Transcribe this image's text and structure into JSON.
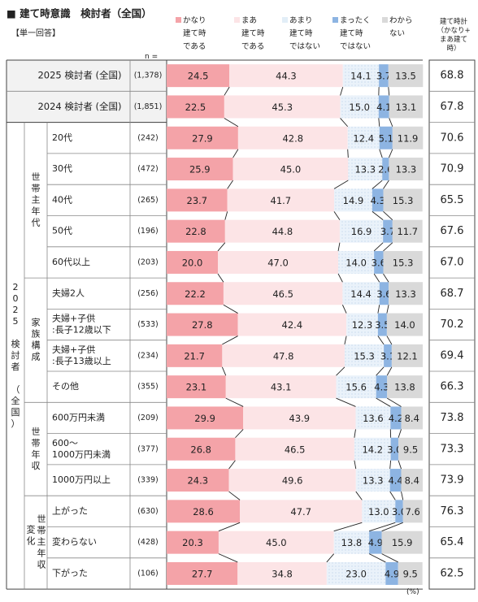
{
  "header": {
    "title": "■ 建て時意識　検討者（全国）",
    "subtitle": "【単一回答】",
    "n_label": "n =",
    "percent_unit": "(%)",
    "summary_header": [
      "建て時計",
      "（かなり+",
      "まあ建て",
      "時）"
    ]
  },
  "legend": [
    {
      "lines": [
        "かなり",
        "建て時",
        "である"
      ],
      "color": "#f4a3a8"
    },
    {
      "lines": [
        "まあ",
        "建て時",
        "である"
      ],
      "color": "#fce4e6"
    },
    {
      "lines": [
        "あまり",
        "建て時",
        "ではない"
      ],
      "color": "#e2eef7"
    },
    {
      "lines": [
        "まったく",
        "建て時",
        "ではない"
      ],
      "color": "#8db4e2"
    },
    {
      "lines": [
        "わから",
        "ない"
      ],
      "color": "#d9d9d9"
    }
  ],
  "groups": [
    {
      "label": "2025 検討者（全国）",
      "label_lines": [
        "2",
        "0",
        "2",
        "5",
        "",
        "検",
        "討",
        "者",
        "",
        "（",
        "全",
        "国",
        "）"
      ]
    },
    {
      "label": "世帯主年代",
      "label_lines": [
        "世",
        "帯",
        "主",
        "年",
        "代"
      ]
    },
    {
      "label": "家族構成",
      "label_lines": [
        "家",
        "族",
        "構",
        "成"
      ]
    },
    {
      "label": "世帯年収",
      "label_lines": [
        "世",
        "帯",
        "年",
        "収"
      ]
    },
    {
      "label": "世帯年収変化",
      "label_lines_a": [
        "変",
        "化"
      ],
      "label_lines_b": [
        "世",
        "帯",
        "主",
        "年",
        "収"
      ]
    }
  ],
  "chart_data": {
    "type": "bar",
    "stacked": true,
    "orientation": "horizontal",
    "series": [
      {
        "name": "かなり建て時である",
        "color": "#f4a3a8"
      },
      {
        "name": "まあ建て時である",
        "color": "#fce4e6"
      },
      {
        "name": "あまり建て時ではない",
        "color": "#e2eef7"
      },
      {
        "name": "まったく建て時ではない",
        "color": "#8db4e2"
      },
      {
        "name": "わからない",
        "color": "#d9d9d9"
      }
    ],
    "rows": [
      {
        "label": "2025 検討者 (全国)",
        "n": "(1,378)",
        "values": [
          24.5,
          44.3,
          14.1,
          3.7,
          13.5
        ],
        "labels": [
          "24.5",
          "44.3",
          "14.1",
          "3.7",
          "13.5"
        ],
        "total": "68.8"
      },
      {
        "label": "2024 検討者 (全国)",
        "n": "(1,851)",
        "values": [
          22.5,
          45.3,
          15.0,
          4.1,
          13.1
        ],
        "labels": [
          "22.5",
          "45.3",
          "15.0",
          "4.1",
          "13.1"
        ],
        "total": "67.8"
      },
      {
        "label": "20代",
        "n": "(242)",
        "values": [
          27.9,
          42.8,
          12.4,
          5.1,
          11.9
        ],
        "labels": [
          "27.9",
          "42.8",
          "12.4",
          "5.1",
          "11.9"
        ],
        "total": "70.6"
      },
      {
        "label": "30代",
        "n": "(472)",
        "values": [
          25.9,
          45.0,
          13.3,
          2.6,
          13.3
        ],
        "labels": [
          "25.9",
          "45.0",
          "13.3",
          "2.6",
          "13.3"
        ],
        "total": "70.9"
      },
      {
        "label": "40代",
        "n": "(265)",
        "values": [
          23.7,
          41.7,
          14.9,
          4.3,
          15.3
        ],
        "labels": [
          "23.7",
          "41.7",
          "14.9",
          "4.3",
          "15.3"
        ],
        "total": "65.5"
      },
      {
        "label": "50代",
        "n": "(196)",
        "values": [
          22.8,
          44.8,
          16.9,
          3.7,
          11.7
        ],
        "labels": [
          "22.8",
          "44.8",
          "16.9",
          "3.7",
          "11.7"
        ],
        "total": "67.6"
      },
      {
        "label": "60代以上",
        "n": "(203)",
        "values": [
          20.0,
          47.0,
          14.0,
          3.6,
          15.3
        ],
        "labels": [
          "20.0",
          "47.0",
          "14.0",
          "3.6",
          "15.3"
        ],
        "total": "67.0"
      },
      {
        "label": "夫婦2人",
        "n": "(256)",
        "values": [
          22.2,
          46.5,
          14.4,
          3.6,
          13.3
        ],
        "labels": [
          "22.2",
          "46.5",
          "14.4",
          "3.6",
          "13.3"
        ],
        "total": "68.7"
      },
      {
        "label": "夫婦+子供:長子12歳以下",
        "label_lines": [
          "夫婦+子供",
          ":長子12歳以下"
        ],
        "n": "(533)",
        "values": [
          27.8,
          42.4,
          12.3,
          3.5,
          14.0
        ],
        "labels": [
          "27.8",
          "42.4",
          "12.3",
          "3.5",
          "14.0"
        ],
        "total": "70.2"
      },
      {
        "label": "夫婦+子供:長子13歳以上",
        "label_lines": [
          "夫婦+子供",
          ":長子13歳以上"
        ],
        "n": "(234)",
        "values": [
          21.7,
          47.8,
          15.3,
          3.1,
          12.1
        ],
        "labels": [
          "21.7",
          "47.8",
          "15.3",
          "3.1",
          "12.1"
        ],
        "total": "69.4"
      },
      {
        "label": "その他",
        "n": "(355)",
        "values": [
          23.1,
          43.1,
          15.6,
          4.3,
          13.8
        ],
        "labels": [
          "23.1",
          "43.1",
          "15.6",
          "4.3",
          "13.8"
        ],
        "total": "66.3"
      },
      {
        "label": "600万円未満",
        "n": "(209)",
        "values": [
          29.9,
          43.9,
          13.6,
          4.2,
          8.4
        ],
        "labels": [
          "29.9",
          "43.9",
          "13.6",
          "4.2",
          "8.4"
        ],
        "total": "73.8"
      },
      {
        "label": "600～1000万円未満",
        "label_lines": [
          "600～",
          "1000万円未満"
        ],
        "n": "(377)",
        "values": [
          26.8,
          46.5,
          14.2,
          3.0,
          9.5
        ],
        "labels": [
          "26.8",
          "46.5",
          "14.2",
          "3.0",
          "9.5"
        ],
        "total": "73.3"
      },
      {
        "label": "1000万円以上",
        "n": "(339)",
        "values": [
          24.3,
          49.6,
          13.3,
          4.4,
          8.4
        ],
        "labels": [
          "24.3",
          "49.6",
          "13.3",
          "4.4",
          "8.4"
        ],
        "total": "73.9"
      },
      {
        "label": "上がった",
        "n": "(630)",
        "values": [
          28.6,
          47.7,
          13.0,
          3.0,
          7.6
        ],
        "labels": [
          "28.6",
          "47.7",
          "13.0",
          "3.0",
          "7.6"
        ],
        "total": "76.3"
      },
      {
        "label": "変わらない",
        "n": "(428)",
        "values": [
          20.3,
          45.0,
          13.8,
          4.9,
          15.9
        ],
        "labels": [
          "20.3",
          "45.0",
          "13.8",
          "4.9",
          "15.9"
        ],
        "total": "65.4"
      },
      {
        "label": "下がった",
        "n": "(106)",
        "values": [
          27.7,
          34.8,
          23.0,
          4.9,
          9.5
        ],
        "labels": [
          "27.7",
          "34.8",
          "23.0",
          "4.9",
          "9.5"
        ],
        "total": "62.5"
      }
    ],
    "xlim": [
      0,
      100
    ]
  }
}
